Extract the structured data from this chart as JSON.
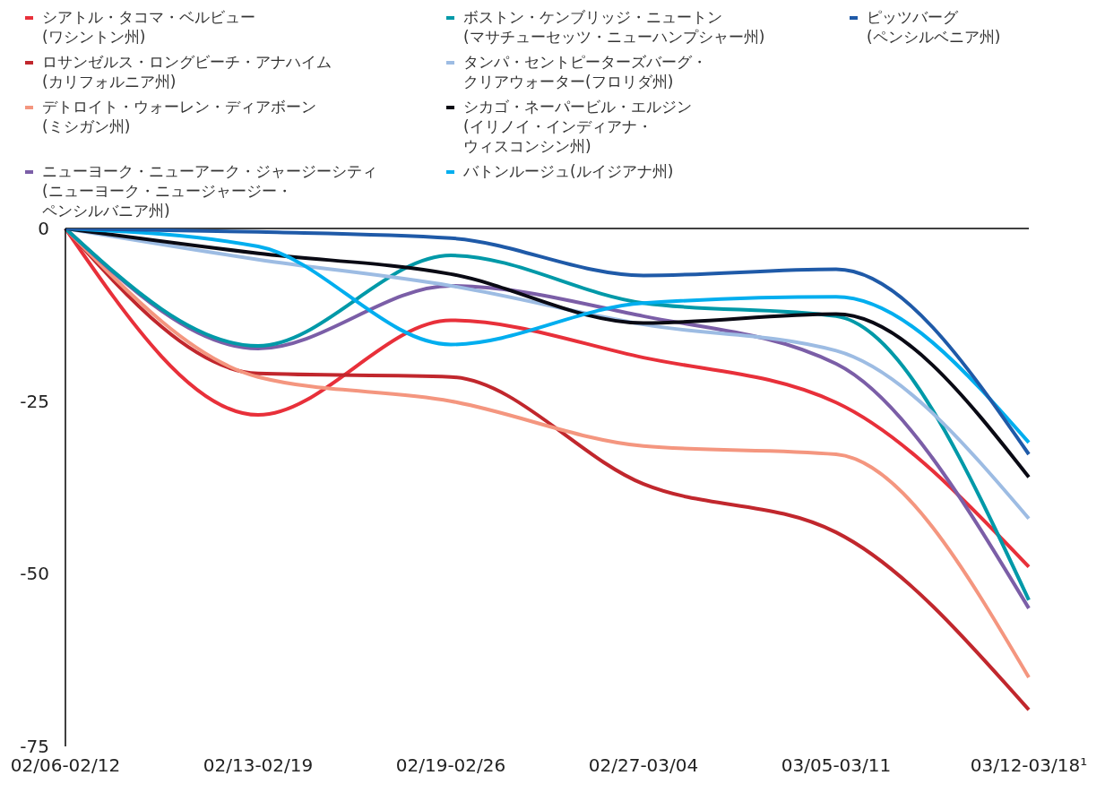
{
  "chart_data": {
    "type": "line",
    "categories": [
      "02/06-02/12",
      "02/13-02/19",
      "02/19-02/26",
      "02/27-03/04",
      "03/05-03/11",
      "03/12-03/18¹"
    ],
    "series": [
      {
        "name": "シアトル・タコマ・ベルビュー\n(ワシントン州)",
        "color": "#e8303a",
        "values": [
          0,
          -27,
          -13.3,
          -18.7,
          -25.2,
          -49
        ]
      },
      {
        "name": "ロサンゼルス・ロングビーチ・アナハイム\n(カリフォルニア州)",
        "color": "#c1272d",
        "values": [
          0,
          -21,
          -21.5,
          -37,
          -44,
          -69.7
        ]
      },
      {
        "name": "デトロイト・ウォーレン・ディアボーン\n(ミシガン州)",
        "color": "#f4967f",
        "values": [
          0,
          -21.5,
          -25,
          -31.5,
          -32.7,
          -65
        ]
      },
      {
        "name": "ニューヨーク・ニューアーク・ジャージーシティ\n(ニューヨーク・ニュージャージー・ペンシルバニア州)",
        "color": "#7b5ea7",
        "values": [
          0,
          -17.4,
          -8.3,
          -12.7,
          -19.6,
          -55
        ]
      },
      {
        "name": "ボストン・ケンブリッジ・ニュートン\n(マサチューセッツ・ニューハンプシャー州)",
        "color": "#0099a8",
        "values": [
          0,
          -17,
          -3.9,
          -10.8,
          -12.7,
          -53.8
        ]
      },
      {
        "name": "タンパ・セントピーターズバーグ・クリアウォーター(フロリダ州)",
        "color": "#9dbce3",
        "values": [
          0,
          -4.5,
          -8.3,
          -13.9,
          -17.7,
          -42
        ]
      },
      {
        "name": "シカゴ・ネーパービル・エルジン\n(イリノイ・インディアナ・ウィスコンシン州)",
        "color": "#0a0a14",
        "values": [
          0,
          -3.6,
          -6.6,
          -13.7,
          -12.4,
          -36
        ]
      },
      {
        "name": "バトンルージュ(ルイジアナ州)",
        "color": "#00aeef",
        "values": [
          0,
          -2.6,
          -16.8,
          -10.8,
          -9.9,
          -31
        ]
      },
      {
        "name": "ピッツバーグ\n(ペンシルベニア州)",
        "color": "#1f5aa8",
        "values": [
          0,
          -0.5,
          -1.4,
          -6.8,
          -5.9,
          -32.7
        ]
      }
    ],
    "ylim": [
      -75,
      0
    ],
    "yticks": [
      0,
      -25,
      -50,
      -75
    ],
    "grid": false,
    "legend": "top",
    "marker": "none",
    "line_style": "solid",
    "ref_lines": [
      {
        "axis": "y",
        "value": 0,
        "color": "#000000"
      }
    ]
  }
}
